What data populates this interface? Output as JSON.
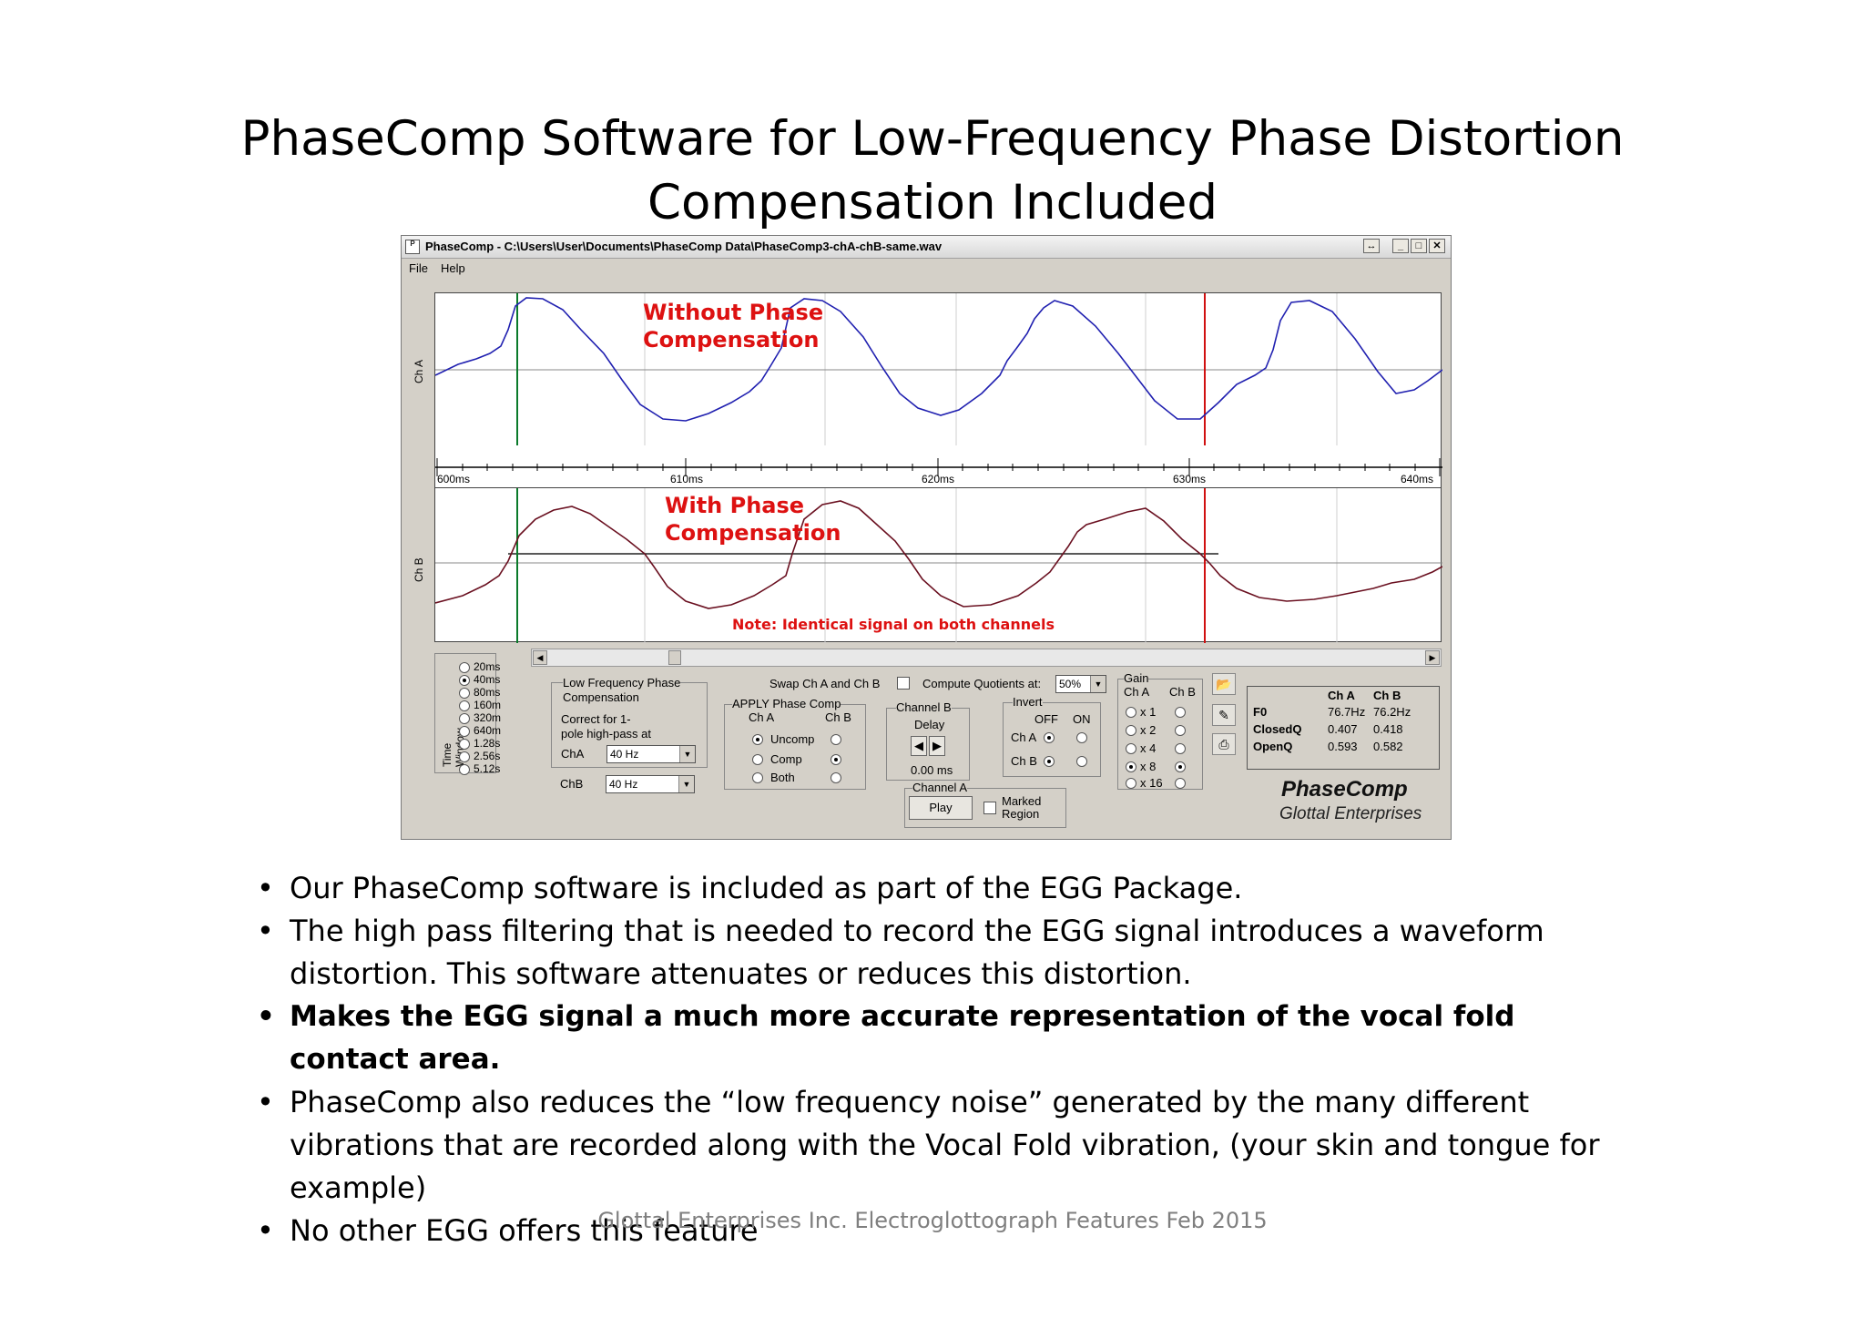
{
  "slide": {
    "title_line1": "PhaseComp Software for Low-Frequency Phase Distortion",
    "title_line2": "Compensation Included"
  },
  "window": {
    "title": "PhaseComp - C:\\Users\\User\\Documents\\PhaseComp Data\\PhaseComp3-chA-chB-same.wav",
    "menu": [
      "File",
      "Help"
    ],
    "app_icon": "P",
    "buttons": {
      "restore": "↔",
      "minimize": "_",
      "maximize": "□",
      "close": "✕"
    }
  },
  "plots": {
    "ch_a_label": "Ch A",
    "ch_b_label": "Ch B",
    "annotation_a": [
      "Without Phase",
      "Compensation"
    ],
    "annotation_b": [
      "With Phase",
      "Compensation"
    ],
    "note": "Note: Identical signal on both channels",
    "time_labels": [
      "600ms",
      "610ms",
      "620ms",
      "630ms",
      "640ms"
    ],
    "trace_colors": {
      "ch_a": "#2020b0",
      "ch_b": "#6a1020"
    },
    "cursor_colors": {
      "left": "#0a7a2a",
      "right": "#d01010"
    }
  },
  "controls": {
    "time_window": {
      "label": "Time Window",
      "options": [
        "20ms",
        "40ms",
        "80ms",
        "160m",
        "320m",
        "640m",
        "1.28s",
        "2.56s",
        "5.12s"
      ],
      "selected": "40ms"
    },
    "lowfreq": {
      "title": "Low Frequency Phase Compensation",
      "title_l1": "Low Frequency Phase",
      "title_l2": "Compensation",
      "desc_l1": "Correct for 1-",
      "desc_l2": "pole high-pass at",
      "cha_label": "ChA",
      "cha_value": "40 Hz",
      "chb_label": "ChB",
      "chb_value": "40 Hz"
    },
    "swap_label": "Swap Ch A and Ch B",
    "compute_label": "Compute Quotients at:",
    "compute_value": "50%",
    "apply": {
      "title": "APPLY Phase Comp",
      "col_a": "Ch A",
      "col_b": "Ch B",
      "rows": [
        "Uncomp",
        "Comp",
        "Both"
      ]
    },
    "channel_b": {
      "title": "Channel B",
      "delay_label": "Delay",
      "delay_value": "0.00 ms"
    },
    "channel_a": {
      "title": "Channel A",
      "play_label": "Play"
    },
    "marked_region_l1": "Marked",
    "marked_region_l2": "Region",
    "invert": {
      "title": "Invert",
      "off": "OFF",
      "on": "ON",
      "cha": "Ch A",
      "chb": "Ch B"
    },
    "gain": {
      "title": "Gain",
      "col_a": "Ch A",
      "col_b": "Ch B",
      "options": [
        "x 1",
        "x 2",
        "x 4",
        "x 8",
        "x 16"
      ],
      "selected": "x 8"
    }
  },
  "stats": {
    "headers": [
      "Ch A",
      "Ch B"
    ],
    "rows": [
      {
        "label": "F0",
        "a": "76.7Hz",
        "b": "76.2Hz"
      },
      {
        "label": "ClosedQ",
        "a": "0.407",
        "b": "0.418"
      },
      {
        "label": "OpenQ",
        "a": "0.593",
        "b": "0.582"
      }
    ]
  },
  "brand": {
    "name": "PhaseComp",
    "company": "Glottal Enterprises"
  },
  "bullets": [
    "Our PhaseComp software is included as part of the EGG Package.",
    "The high pass filtering that is needed to record the EGG signal introduces a waveform",
    "distortion.  This software attenuates or reduces this distortion.",
    "Makes the EGG signal a much more accurate representation of the vocal fold contact area.",
    "PhaseComp also reduces the “low frequency noise” generated by the many different",
    "vibrations that are recorded along with the Vocal Fold vibration, (your skin and tongue for",
    "example)",
    "No other EGG offers this feature"
  ],
  "footer": "Glottal Enterprises Inc. Electroglottograph Features Feb 2015",
  "icons": [
    "app-icon",
    "open-folder-icon",
    "wrench-icon",
    "printer-icon"
  ]
}
